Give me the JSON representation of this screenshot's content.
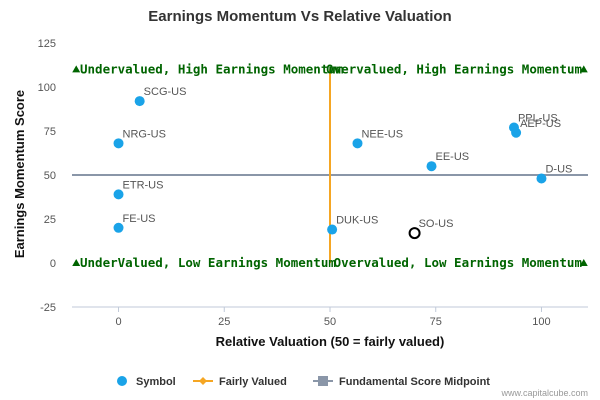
{
  "chart_data": {
    "type": "scatter",
    "title": "Earnings Momentum Vs Relative Valuation",
    "xlabel": "Relative Valuation (50 = fairly valued)",
    "ylabel": "Earnings Momentum Score",
    "xlim": [
      -11,
      111
    ],
    "ylim": [
      -25,
      125
    ],
    "x_ticks": [
      0,
      25,
      50,
      75,
      100
    ],
    "y_ticks": [
      -25,
      0,
      25,
      50,
      75,
      100,
      125
    ],
    "grid": false,
    "legend_position": "bottom",
    "colors": {
      "symbol": "#1aa3e8",
      "fairly_valued": "#f5a623",
      "midpoint": "#8a96a8",
      "quadrant_text": "#006400",
      "highlight_stroke": "#000000"
    },
    "points": [
      {
        "label": "SCG-US",
        "x": 5,
        "y": 92
      },
      {
        "label": "NRG-US",
        "x": 0,
        "y": 68
      },
      {
        "label": "ETR-US",
        "x": 0,
        "y": 39
      },
      {
        "label": "FE-US",
        "x": 0,
        "y": 20
      },
      {
        "label": "NEE-US",
        "x": 56.5,
        "y": 68
      },
      {
        "label": "EE-US",
        "x": 74,
        "y": 55
      },
      {
        "label": "DUK-US",
        "x": 50.5,
        "y": 19
      },
      {
        "label": "PPL-US",
        "x": 93.5,
        "y": 77
      },
      {
        "label": "AEP-US",
        "x": 94,
        "y": 74
      },
      {
        "label": "D-US",
        "x": 100,
        "y": 48
      },
      {
        "label": "SO-US",
        "x": 70,
        "y": 17,
        "highlighted": true
      }
    ],
    "fairly_valued_x": 50,
    "midpoint_y": 50,
    "quadrant_labels": {
      "top_left": "Undervalued, High Earnings Momentum",
      "top_right": "Overvalued, High Earnings Momentum",
      "bottom_left": "UnderValued, Low Earnings Momentum",
      "bottom_right": "Overvalued, Low Earnings Momentum"
    },
    "legend": [
      "Symbol",
      "Fairly Valued",
      "Fundamental Score Midpoint"
    ]
  },
  "credit": "www.capitalcube.com"
}
